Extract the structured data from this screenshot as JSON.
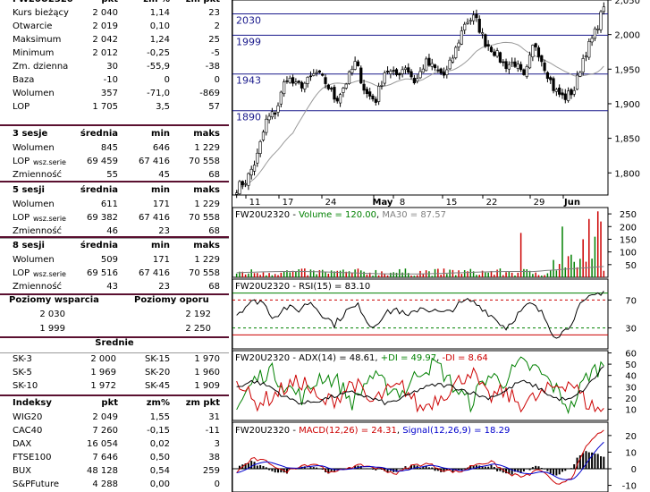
{
  "quote": {
    "header": [
      "FW20U2320",
      "pkt",
      "zm %",
      "zm pkt"
    ],
    "rows": [
      {
        "label": "Kurs bieżący",
        "v1": "2 040",
        "v2": "1,14",
        "v3": "23"
      },
      {
        "label": "Otwarcie",
        "v1": "2 019",
        "v2": "0,10",
        "v3": "2"
      },
      {
        "label": "Maksimum",
        "v1": "2 042",
        "v2": "1,24",
        "v3": "25"
      },
      {
        "label": "Minimum",
        "v1": "2 012",
        "v2": "-0,25",
        "v3": "-5"
      },
      {
        "label": "Zm. dzienna",
        "v1": "30",
        "v2": "-55,9",
        "v3": "-38"
      },
      {
        "label": "Baza",
        "v1": "-10",
        "v2": "0",
        "v3": "0"
      },
      {
        "label": "Wolumen",
        "v1": "357",
        "v2": "-71,0",
        "v3": "-869"
      },
      {
        "label": "LOP",
        "v1": "1 705",
        "v2": "3,5",
        "v3": "57"
      }
    ]
  },
  "sessions": [
    {
      "title": "3 sesje",
      "cols": [
        "średnia",
        "min",
        "maks"
      ],
      "rows": [
        {
          "label": "Wolumen",
          "sub": "",
          "v1": "845",
          "v2": "646",
          "v3": "1 229"
        },
        {
          "label": "LOP",
          "sub": "wsz.serie",
          "v1": "69 459",
          "v2": "67 416",
          "v3": "70 558"
        },
        {
          "label": "Zmienność",
          "sub": "",
          "v1": "55",
          "v2": "45",
          "v3": "68"
        }
      ]
    },
    {
      "title": "5 sesji",
      "cols": [
        "średnia",
        "min",
        "maks"
      ],
      "rows": [
        {
          "label": "Wolumen",
          "sub": "",
          "v1": "611",
          "v2": "171",
          "v3": "1 229"
        },
        {
          "label": "LOP",
          "sub": "wsz.serie",
          "v1": "69 382",
          "v2": "67 416",
          "v3": "70 558"
        },
        {
          "label": "Zmienność",
          "sub": "",
          "v1": "46",
          "v2": "23",
          "v3": "68"
        }
      ]
    },
    {
      "title": "8 sesji",
      "cols": [
        "średnia",
        "min",
        "maks"
      ],
      "rows": [
        {
          "label": "Wolumen",
          "sub": "",
          "v1": "509",
          "v2": "171",
          "v3": "1 229"
        },
        {
          "label": "LOP",
          "sub": "wsz.serie",
          "v1": "69 516",
          "v2": "67 416",
          "v3": "70 558"
        },
        {
          "label": "Zmienność",
          "sub": "",
          "v1": "43",
          "v2": "23",
          "v3": "68"
        }
      ]
    }
  ],
  "levels": {
    "support_label": "Poziomy wsparcia",
    "resistance_label": "Poziomy oporu",
    "support": [
      "2 030",
      "1 999"
    ],
    "resistance": [
      "2 192",
      "2 250"
    ]
  },
  "averages": {
    "title": "Średnie",
    "rows": [
      {
        "l1": "SK-3",
        "v1": "2 000",
        "l2": "SK-15",
        "v2": "1 970"
      },
      {
        "l1": "SK-5",
        "v1": "1 969",
        "l2": "SK-20",
        "v2": "1 960"
      },
      {
        "l1": "SK-10",
        "v1": "1 972",
        "l2": "SK-45",
        "v2": "1 909"
      }
    ]
  },
  "indices": {
    "header": [
      "Indeksy",
      "pkt",
      "zm%",
      "zm pkt"
    ],
    "rows": [
      {
        "label": "WIG20",
        "v1": "2 049",
        "v2": "1,55",
        "v3": "31"
      },
      {
        "label": "CAC40",
        "v1": "7 260",
        "v2": "-0,15",
        "v3": "-11"
      },
      {
        "label": "DAX",
        "v1": "16 054",
        "v2": "0,02",
        "v3": "3"
      },
      {
        "label": "FTSE100",
        "v1": "7 646",
        "v2": "0,50",
        "v3": "38"
      },
      {
        "label": "BUX",
        "v1": "48 128",
        "v2": "0,54",
        "v3": "259"
      },
      {
        "label": "S&PFuture",
        "v1": "4 288",
        "v2": "0,00",
        "v3": "0"
      }
    ]
  },
  "chart_data": [
    {
      "type": "candlestick",
      "title": "FW20U2320",
      "x_tick_labels": [
        "11",
        "17",
        "24",
        "May",
        "8",
        "15",
        "22",
        "29",
        "Jun"
      ],
      "y_ticks": [
        "2,050",
        "2,000",
        "1,950",
        "1,900",
        "1,850",
        "1,800"
      ],
      "ylim": [
        1768,
        2050
      ],
      "horizontal_levels": [
        {
          "label": "2030",
          "value": 2030
        },
        {
          "label": "1999",
          "value": 1999
        },
        {
          "label": "1943",
          "value": 1943
        },
        {
          "label": "1890",
          "value": 1890
        }
      ],
      "close_anchors": [
        1778,
        1790,
        1820,
        1876,
        1890,
        1940,
        1925,
        1930,
        1945,
        1930,
        1905,
        1930,
        1960,
        1915,
        1905,
        1950,
        1940,
        1955,
        1930,
        1960,
        1950,
        1940,
        1975,
        2018,
        2025,
        1990,
        1975,
        1955,
        1960,
        1935,
        1990,
        1955,
        1920,
        1908,
        1920,
        1970,
        1998,
        2040
      ],
      "moving_average_color": "#9a9a9a"
    },
    {
      "type": "bar",
      "title": "FW20U2320",
      "legend": [
        {
          "label": "Volume = 120.00",
          "color": "#008000"
        },
        {
          "label": "MA30 = 87.57",
          "color": "#808080"
        }
      ],
      "y_ticks": [
        "250",
        "200",
        "150",
        "100",
        "50"
      ],
      "ylim": [
        0,
        275
      ],
      "peaks": [
        260,
        230,
        220,
        200,
        175,
        160
      ]
    },
    {
      "type": "line",
      "title": "FW20U2320",
      "legend": [
        {
          "label": "RSI(15) = 83.10",
          "color": "#000000"
        }
      ],
      "y_ticks": [
        "70",
        "30"
      ],
      "ylim": [
        0,
        100
      ],
      "reference_lines": [
        {
          "value": 80,
          "color": "#008000"
        },
        {
          "value": 70,
          "color": "#cc0000"
        },
        {
          "value": 30,
          "color": "#008000"
        },
        {
          "value": 20,
          "color": "#cc0000"
        }
      ],
      "anchors": [
        50,
        65,
        70,
        45,
        60,
        55,
        68,
        50,
        35,
        55,
        62,
        30,
        48,
        58,
        45,
        60,
        55,
        50,
        62,
        70,
        60,
        45,
        30,
        50,
        65,
        50,
        18,
        28,
        60,
        75,
        83
      ]
    },
    {
      "type": "line",
      "title": "FW20U2320",
      "legend": [
        {
          "label": "ADX(14) = 48.61",
          "color": "#000000"
        },
        {
          "label": "+DI = 49.97",
          "color": "#008000"
        },
        {
          "label": "-DI = 8.64",
          "color": "#cc0000"
        }
      ],
      "y_ticks": [
        "60",
        "50",
        "40",
        "30",
        "20",
        "10"
      ],
      "ylim": [
        0,
        62
      ]
    },
    {
      "type": "line",
      "title": "FW20U2320",
      "legend": [
        {
          "label": "MACD(12,26) = 24.31",
          "color": "#cc0000"
        },
        {
          "label": "Signal(12,26,9) = 18.29",
          "color": "#0000cc"
        }
      ],
      "y_ticks": [
        "20",
        "10",
        "0",
        "-10"
      ],
      "ylim": [
        -14,
        28
      ]
    }
  ],
  "panel_legend": {
    "volume_sep": " - ",
    "comma": ", ",
    "dash": " - "
  }
}
